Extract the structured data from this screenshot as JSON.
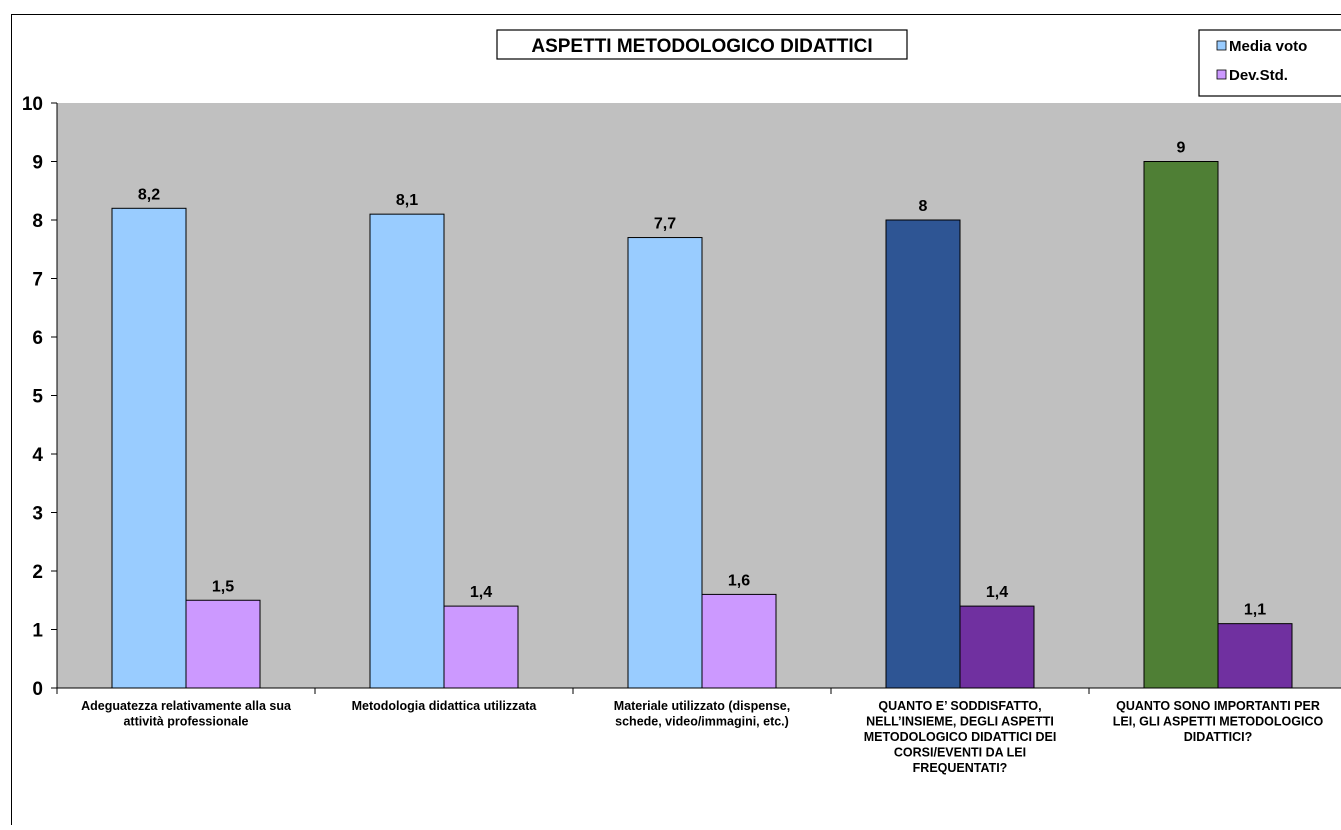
{
  "chart_data": {
    "type": "bar",
    "title": "ASPETTI METODOLOGICO DIDATTICI",
    "xlabel": "",
    "ylabel": "",
    "ylim": [
      0,
      10
    ],
    "yticks": [
      0,
      1,
      2,
      3,
      4,
      5,
      6,
      7,
      8,
      9,
      10
    ],
    "grid": false,
    "legend_position": "top-right",
    "categories": [
      [
        "Adeguatezza relativamente alla sua",
        "attività professionale"
      ],
      [
        "Metodologia didattica utilizzata"
      ],
      [
        "Materiale utilizzato (dispense,",
        "schede, video/immagini, etc.)"
      ],
      [
        "QUANTO E’ SODDISFATTO,",
        "NELL’INSIEME, DEGLI ASPETTI",
        "METODOLOGICO DIDATTICI DEI",
        "CORSI/EVENTI DA LEI",
        "FREQUENTATI?"
      ],
      [
        "QUANTO SONO IMPORTANTI PER",
        "LEI, GLI ASPETTI METODOLOGICO",
        "DIDATTICI?"
      ]
    ],
    "series": [
      {
        "name": "Media voto",
        "values": [
          8.2,
          8.1,
          7.7,
          8,
          9
        ],
        "labels": [
          "8,2",
          "8,1",
          "7,7",
          "8",
          "9"
        ],
        "color": "#99ccff",
        "point_colors": [
          "#99ccff",
          "#99ccff",
          "#99ccff",
          "#2e5594",
          "#4f7f35"
        ]
      },
      {
        "name": "Dev.Std.",
        "values": [
          1.5,
          1.4,
          1.6,
          1.4,
          1.1
        ],
        "labels": [
          "1,5",
          "1,4",
          "1,6",
          "1,4",
          "1,1"
        ],
        "color": "#cc99ff",
        "point_colors": [
          "#cc99ff",
          "#cc99ff",
          "#cc99ff",
          "#7030a0",
          "#7030a0"
        ]
      }
    ],
    "colors": {
      "plot_background": "#c0c0c0",
      "bar_outline": "#000000"
    }
  }
}
